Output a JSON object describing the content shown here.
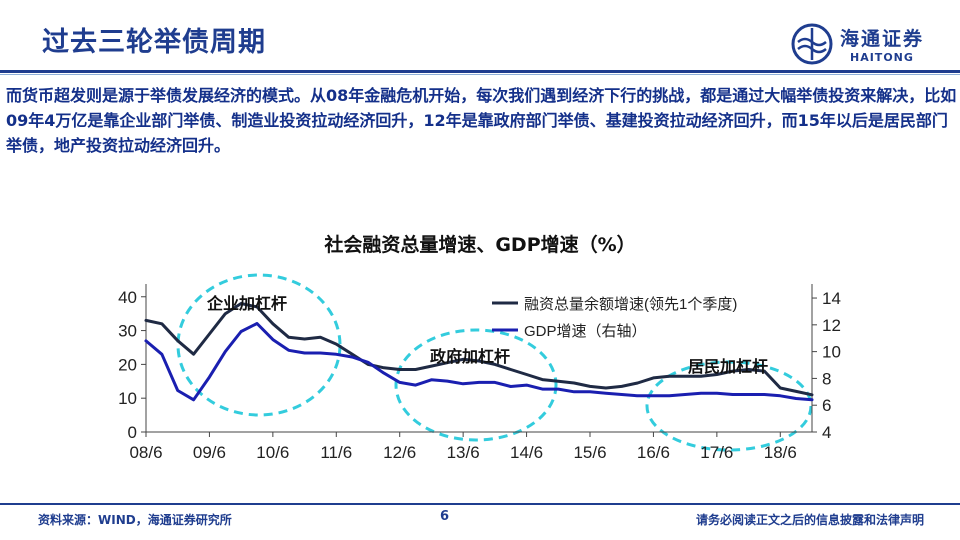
{
  "slide": {
    "title": "过去三轮举债周期",
    "intro": "而货币超发则是源于举债发展经济的模式。从08年金融危机开始，每次我们遇到经济下行的挑战，都是通过大幅举债投资来解决，比如09年4万亿是靠企业部门举债、制造业投资拉动经济回升，12年是靠政府部门举债、基建投资拉动经济回升，而15年以后是居民部门举债，地产投资拉动经济回升。"
  },
  "logo": {
    "cn": "海通证券",
    "en": "HAITONG",
    "icon": "haitong-emblem-icon"
  },
  "footer": {
    "source": "资料来源：WIND，海通证券研究所",
    "page": "6",
    "disclaimer": "请务必阅读正文之后的信息披露和法律声明"
  },
  "colors": {
    "brand": "#1f3d8f",
    "series1": "#1f2a44",
    "series2": "#1a1fb0",
    "highlight": "#33ccdd"
  },
  "chart_data": {
    "type": "line",
    "title": "社会融资总量增速、GDP增速（%）",
    "x_ticks": [
      "08/6",
      "09/6",
      "10/6",
      "11/6",
      "12/6",
      "13/6",
      "14/6",
      "15/6",
      "16/6",
      "17/6",
      "18/6"
    ],
    "x_range": [
      "2008-06",
      "2018-12"
    ],
    "y_left": {
      "ticks": [
        0,
        10,
        20,
        30,
        40
      ],
      "range": [
        0,
        42
      ]
    },
    "y_right": {
      "ticks": [
        4,
        6,
        8,
        10,
        12,
        14
      ],
      "range": [
        4,
        14.6
      ]
    },
    "legend_position": "top-right",
    "grid": false,
    "series": [
      {
        "name": "融资总量余额增速(领先1个季度)",
        "axis": "left",
        "color": "#1f2a44",
        "points": [
          [
            "2008-06",
            33
          ],
          [
            "2008-09",
            32
          ],
          [
            "2008-12",
            27
          ],
          [
            "2009-03",
            23
          ],
          [
            "2009-06",
            29
          ],
          [
            "2009-09",
            35
          ],
          [
            "2009-12",
            38
          ],
          [
            "2010-03",
            37
          ],
          [
            "2010-06",
            32
          ],
          [
            "2010-09",
            28
          ],
          [
            "2010-12",
            27.5
          ],
          [
            "2011-03",
            28
          ],
          [
            "2011-06",
            26
          ],
          [
            "2011-09",
            23
          ],
          [
            "2011-12",
            20
          ],
          [
            "2012-03",
            19
          ],
          [
            "2012-06",
            18.5
          ],
          [
            "2012-09",
            18.5
          ],
          [
            "2012-12",
            19.5
          ],
          [
            "2013-03",
            20.5
          ],
          [
            "2013-06",
            21.5
          ],
          [
            "2013-09",
            21
          ],
          [
            "2013-12",
            20
          ],
          [
            "2014-03",
            18.5
          ],
          [
            "2014-06",
            17
          ],
          [
            "2014-09",
            15.5
          ],
          [
            "2014-12",
            15
          ],
          [
            "2015-03",
            14.5
          ],
          [
            "2015-06",
            13.5
          ],
          [
            "2015-09",
            13
          ],
          [
            "2015-12",
            13.5
          ],
          [
            "2016-03",
            14.5
          ],
          [
            "2016-06",
            16
          ],
          [
            "2016-09",
            16.5
          ],
          [
            "2016-12",
            16.5
          ],
          [
            "2017-03",
            16.5
          ],
          [
            "2017-06",
            17
          ],
          [
            "2017-09",
            18
          ],
          [
            "2017-12",
            18.5
          ],
          [
            "2018-03",
            18
          ],
          [
            "2018-06",
            13
          ],
          [
            "2018-09",
            12
          ],
          [
            "2018-12",
            11
          ]
        ]
      },
      {
        "name": "GDP增速（右轴）",
        "axis": "right",
        "color": "#1a1fb0",
        "points": [
          [
            "2008-06",
            10.8
          ],
          [
            "2008-09",
            9.8
          ],
          [
            "2008-12",
            7.1
          ],
          [
            "2009-03",
            6.4
          ],
          [
            "2009-06",
            8.1
          ],
          [
            "2009-09",
            10.0
          ],
          [
            "2009-12",
            11.5
          ],
          [
            "2010-03",
            12.1
          ],
          [
            "2010-06",
            10.9
          ],
          [
            "2010-09",
            10.1
          ],
          [
            "2010-12",
            9.9
          ],
          [
            "2011-03",
            9.9
          ],
          [
            "2011-06",
            9.8
          ],
          [
            "2011-09",
            9.6
          ],
          [
            "2011-12",
            9.2
          ],
          [
            "2012-03",
            8.4
          ],
          [
            "2012-06",
            7.7
          ],
          [
            "2012-09",
            7.5
          ],
          [
            "2012-12",
            7.9
          ],
          [
            "2013-03",
            7.8
          ],
          [
            "2013-06",
            7.6
          ],
          [
            "2013-09",
            7.7
          ],
          [
            "2013-12",
            7.7
          ],
          [
            "2014-03",
            7.4
          ],
          [
            "2014-06",
            7.5
          ],
          [
            "2014-09",
            7.2
          ],
          [
            "2014-12",
            7.2
          ],
          [
            "2015-03",
            7.0
          ],
          [
            "2015-06",
            7.0
          ],
          [
            "2015-09",
            6.9
          ],
          [
            "2015-12",
            6.8
          ],
          [
            "2016-03",
            6.7
          ],
          [
            "2016-06",
            6.7
          ],
          [
            "2016-09",
            6.7
          ],
          [
            "2016-12",
            6.8
          ],
          [
            "2017-03",
            6.9
          ],
          [
            "2017-06",
            6.9
          ],
          [
            "2017-09",
            6.8
          ],
          [
            "2017-12",
            6.8
          ],
          [
            "2018-03",
            6.8
          ],
          [
            "2018-06",
            6.7
          ],
          [
            "2018-09",
            6.5
          ],
          [
            "2018-12",
            6.4
          ]
        ]
      }
    ],
    "annotations": [
      "企业加杠杆",
      "政府加杠杆",
      "居民加杠杆"
    ]
  }
}
